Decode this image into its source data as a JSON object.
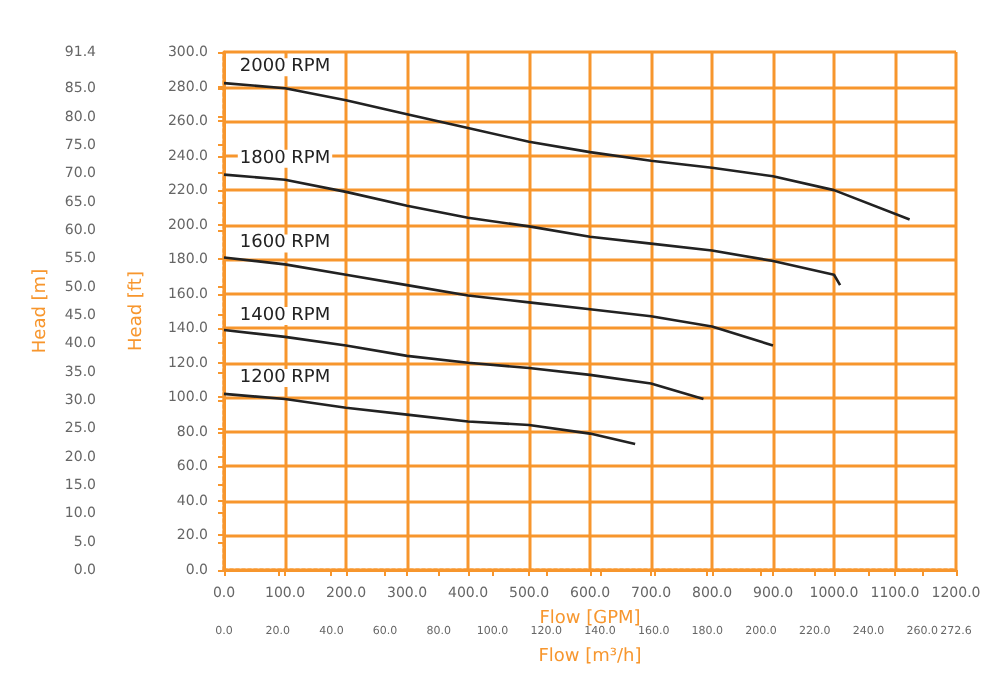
{
  "chart_data": {
    "type": "line",
    "xlabel": "Flow [GPM]",
    "ylabel": "Head [ft]",
    "y2label": "Head [m]",
    "x2label": "Flow [m³/h]",
    "xlim": [
      0,
      1200
    ],
    "xticks": [
      {
        "value": 0,
        "label": "0.0"
      },
      {
        "value": 100,
        "label": "100.0"
      },
      {
        "value": 200,
        "label": "200.0"
      },
      {
        "value": 300,
        "label": "300.0"
      },
      {
        "value": 400,
        "label": "400.0"
      },
      {
        "value": 500,
        "label": "500.0"
      },
      {
        "value": 600,
        "label": "600.0"
      },
      {
        "value": 700,
        "label": "700.0"
      },
      {
        "value": 800,
        "label": "800.0"
      },
      {
        "value": 900,
        "label": "900.0"
      },
      {
        "value": 1000,
        "label": "1000.0"
      },
      {
        "value": 1100,
        "label": "1100.0"
      },
      {
        "value": 1200,
        "label": "1200.0"
      }
    ],
    "ylim": [
      0,
      300
    ],
    "yticks": [
      {
        "value": 0,
        "label": "0.0"
      },
      {
        "value": 20,
        "label": "20.0"
      },
      {
        "value": 40,
        "label": "40.0"
      },
      {
        "value": 60,
        "label": "60.0"
      },
      {
        "value": 80,
        "label": "80.0"
      },
      {
        "value": 100,
        "label": "100.0"
      },
      {
        "value": 120,
        "label": "120.0"
      },
      {
        "value": 140,
        "label": "140.0"
      },
      {
        "value": 160,
        "label": "160.0"
      },
      {
        "value": 180,
        "label": "180.0"
      },
      {
        "value": 200,
        "label": "200.0"
      },
      {
        "value": 220,
        "label": "220.0"
      },
      {
        "value": 240,
        "label": "240.0"
      },
      {
        "value": 260,
        "label": "260.0"
      },
      {
        "value": 280,
        "label": "280.0"
      },
      {
        "value": 300,
        "label": "300.0"
      }
    ],
    "y2lim": [
      0,
      91.4
    ],
    "y2ticks": [
      {
        "value": 0,
        "label": "0.0"
      },
      {
        "value": 5,
        "label": "5.0"
      },
      {
        "value": 10,
        "label": "10.0"
      },
      {
        "value": 15,
        "label": "15.0"
      },
      {
        "value": 20,
        "label": "20.0"
      },
      {
        "value": 25,
        "label": "25.0"
      },
      {
        "value": 30,
        "label": "30.0"
      },
      {
        "value": 35,
        "label": "35.0"
      },
      {
        "value": 40,
        "label": "40.0"
      },
      {
        "value": 45,
        "label": "45.0"
      },
      {
        "value": 50,
        "label": "50.0"
      },
      {
        "value": 55,
        "label": "55.0"
      },
      {
        "value": 60,
        "label": "60.0"
      },
      {
        "value": 65,
        "label": "65.0"
      },
      {
        "value": 70,
        "label": "70.0"
      },
      {
        "value": 75,
        "label": "75.0"
      },
      {
        "value": 80,
        "label": "80.0"
      },
      {
        "value": 85,
        "label": "85.0"
      },
      91.4
    ],
    "x2lim": [
      0,
      272.6
    ],
    "x2ticks": [
      {
        "value": 0,
        "label": "0.0"
      },
      {
        "value": 20,
        "label": "20.0"
      },
      {
        "value": 40,
        "label": "40.0"
      },
      {
        "value": 60,
        "label": "60.0"
      },
      {
        "value": 80,
        "label": "80.0"
      },
      {
        "value": 100,
        "label": "100.0"
      },
      {
        "value": 120,
        "label": "120.0"
      },
      {
        "value": 140,
        "label": "140.0"
      },
      {
        "value": 160,
        "label": "160.0"
      },
      {
        "value": 180,
        "label": "180.0"
      },
      {
        "value": 200,
        "label": "200.0"
      },
      {
        "value": 220,
        "label": "220.0"
      },
      {
        "value": 240,
        "label": "240.0"
      },
      {
        "value": 260,
        "label": "260.0"
      },
      272.6
    ],
    "grid": true,
    "series": [
      {
        "name": "2000 RPM",
        "color": "#222222",
        "x": [
          0,
          100,
          200,
          300,
          400,
          500,
          600,
          700,
          800,
          900,
          1000,
          1124
        ],
        "values": [
          282,
          279,
          272,
          264,
          256,
          248,
          242,
          237,
          233,
          228,
          220,
          203
        ]
      },
      {
        "name": "1800 RPM",
        "color": "#222222",
        "x": [
          0,
          100,
          200,
          300,
          400,
          500,
          600,
          700,
          800,
          900,
          1000,
          1010
        ],
        "values": [
          229,
          226,
          219,
          211,
          204,
          199,
          193,
          189,
          185,
          179,
          171,
          165
        ]
      },
      {
        "name": "1600 RPM",
        "color": "#222222",
        "x": [
          0,
          100,
          200,
          300,
          400,
          500,
          600,
          700,
          800,
          900
        ],
        "values": [
          181,
          177,
          171,
          165,
          159,
          155,
          151,
          147,
          141,
          130
        ]
      },
      {
        "name": "1400 RPM",
        "color": "#222222",
        "x": [
          0,
          100,
          200,
          300,
          400,
          500,
          600,
          700,
          786
        ],
        "values": [
          139,
          135,
          130,
          124,
          120,
          117,
          113,
          108,
          99
        ]
      },
      {
        "name": "1200 RPM",
        "color": "#222222",
        "x": [
          0,
          100,
          200,
          300,
          400,
          500,
          600,
          674
        ],
        "values": [
          102,
          99,
          94,
          90,
          86,
          84,
          79,
          73
        ]
      }
    ]
  }
}
